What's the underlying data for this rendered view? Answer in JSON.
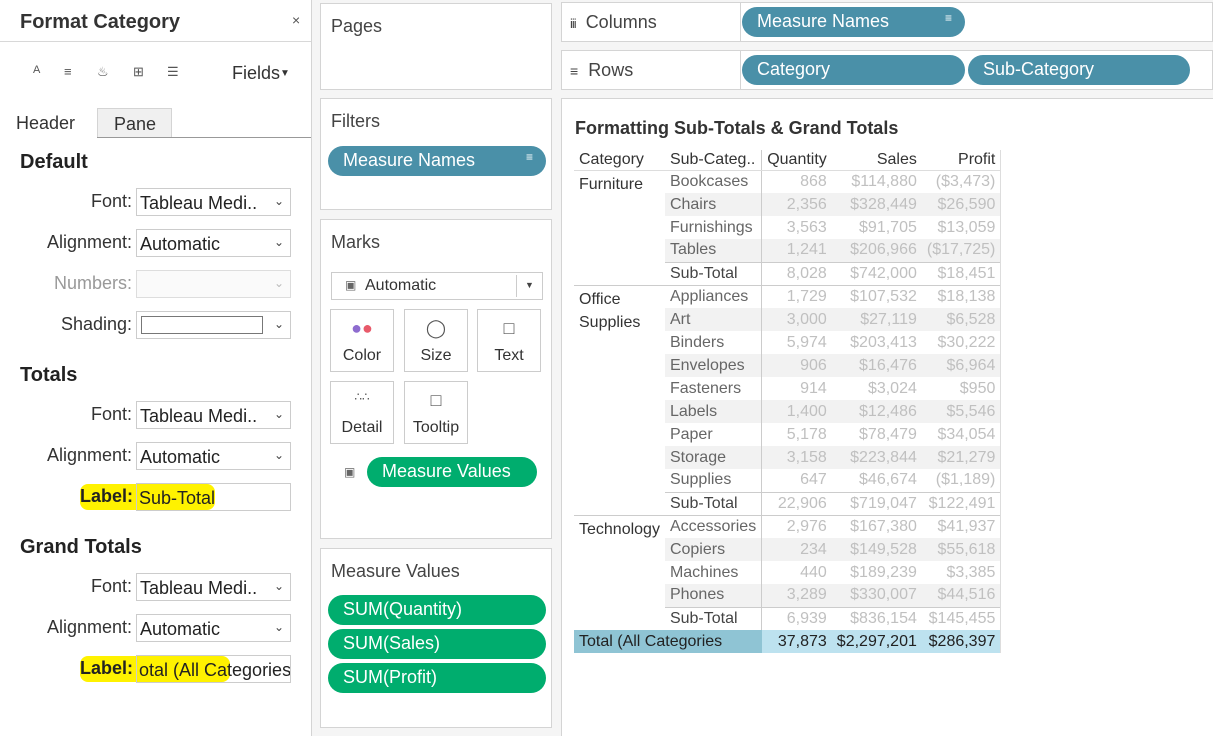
{
  "format_pane": {
    "title": "Format Category",
    "close": "×",
    "fields_label": "Fields",
    "tabs": [
      "Header",
      "Pane"
    ],
    "default": {
      "heading": "Default",
      "font_label": "Font:",
      "font_value": "Tableau Medi..",
      "alignment_label": "Alignment:",
      "alignment_value": "Automatic",
      "numbers_label": "Numbers:",
      "shading_label": "Shading:"
    },
    "totals": {
      "heading": "Totals",
      "font_label": "Font:",
      "font_value": "Tableau Medi..",
      "alignment_label": "Alignment:",
      "alignment_value": "Automatic",
      "label_label": "Label:",
      "label_value": "Sub-Total"
    },
    "grand_totals": {
      "heading": "Grand Totals",
      "font_label": "Font:",
      "font_value": "Tableau Medi..",
      "alignment_label": "Alignment:",
      "alignment_value": "Automatic",
      "label_label": "Label:",
      "label_value": "otal (All Categories"
    }
  },
  "pages": {
    "title": "Pages"
  },
  "filters": {
    "title": "Filters",
    "pill": "Measure Names"
  },
  "marks": {
    "title": "Marks",
    "type": "Automatic",
    "buttons": [
      "Color",
      "Size",
      "Text",
      "Detail",
      "Tooltip"
    ],
    "text_pill": "Measure Values"
  },
  "measure_values": {
    "title": "Measure Values",
    "pills": [
      "SUM(Quantity)",
      "SUM(Sales)",
      "SUM(Profit)"
    ]
  },
  "columns": {
    "label": "Columns",
    "pills": [
      "Measure Names"
    ]
  },
  "rows": {
    "label": "Rows",
    "pills": [
      "Category",
      "Sub-Category"
    ]
  },
  "viz": {
    "title": "Formatting Sub-Totals  & Grand Totals",
    "headers": [
      "Category",
      "Sub-Categ..",
      "Quantity",
      "Sales",
      "Profit"
    ],
    "groups": [
      {
        "category": [
          "Furniture"
        ],
        "rows": [
          [
            "Bookcases",
            "868",
            "$114,880",
            "($3,473)"
          ],
          [
            "Chairs",
            "2,356",
            "$328,449",
            "$26,590"
          ],
          [
            "Furnishings",
            "3,563",
            "$91,705",
            "$13,059"
          ],
          [
            "Tables",
            "1,241",
            "$206,966",
            "($17,725)"
          ],
          [
            "Sub-Total",
            "8,028",
            "$742,000",
            "$18,451"
          ]
        ]
      },
      {
        "category": [
          "Office",
          "Supplies"
        ],
        "rows": [
          [
            "Appliances",
            "1,729",
            "$107,532",
            "$18,138"
          ],
          [
            "Art",
            "3,000",
            "$27,119",
            "$6,528"
          ],
          [
            "Binders",
            "5,974",
            "$203,413",
            "$30,222"
          ],
          [
            "Envelopes",
            "906",
            "$16,476",
            "$6,964"
          ],
          [
            "Fasteners",
            "914",
            "$3,024",
            "$950"
          ],
          [
            "Labels",
            "1,400",
            "$12,486",
            "$5,546"
          ],
          [
            "Paper",
            "5,178",
            "$78,479",
            "$34,054"
          ],
          [
            "Storage",
            "3,158",
            "$223,844",
            "$21,279"
          ],
          [
            "Supplies",
            "647",
            "$46,674",
            "($1,189)"
          ],
          [
            "Sub-Total",
            "22,906",
            "$719,047",
            "$122,491"
          ]
        ]
      },
      {
        "category": [
          "Technology"
        ],
        "rows": [
          [
            "Accessories",
            "2,976",
            "$167,380",
            "$41,937"
          ],
          [
            "Copiers",
            "234",
            "$149,528",
            "$55,618"
          ],
          [
            "Machines",
            "440",
            "$189,239",
            "$3,385"
          ],
          [
            "Phones",
            "3,289",
            "$330,007",
            "$44,516"
          ],
          [
            "Sub-Total",
            "6,939",
            "$836,154",
            "$145,455"
          ]
        ]
      }
    ],
    "grand_total": [
      "Total (All Categories",
      "37,873",
      "$2,297,201",
      "$286,397"
    ]
  },
  "colors": {
    "pill_blue": "#4a90a8",
    "pill_green": "#00ad6e",
    "highlight": "#fff200",
    "total_row": "#bde2ef"
  }
}
